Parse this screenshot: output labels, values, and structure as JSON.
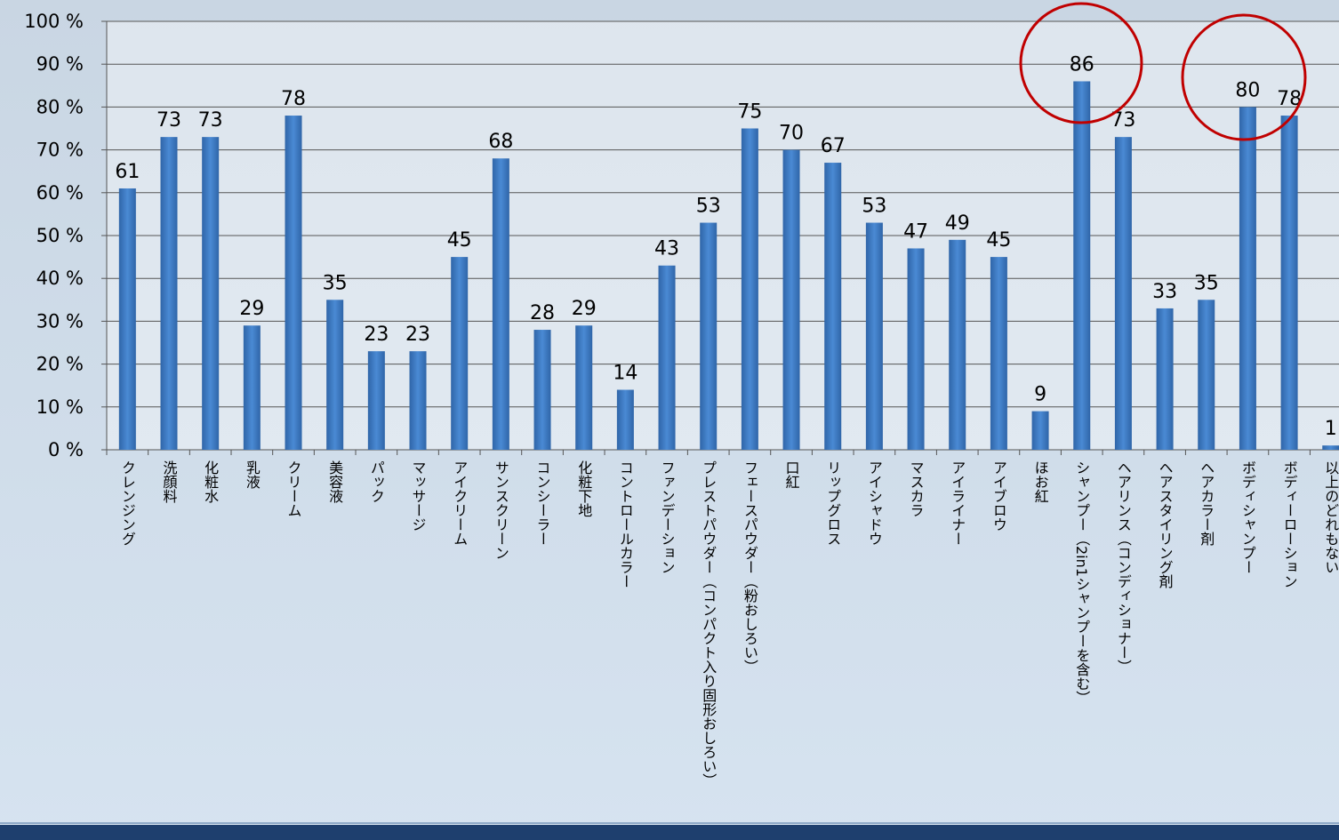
{
  "chart_data": {
    "type": "bar",
    "categories": [
      "クレンジング",
      "洗顔料",
      "化粧水",
      "乳液",
      "クリーム",
      "美容液",
      "パック",
      "マッサージ",
      "アイクリーム",
      "サンスクリーン",
      "コンシーラー",
      "化粧下地",
      "コントロールカラー",
      "ファンデーション",
      "プレストパウダー（コンパクト入り固形おしろい）",
      "フェースパウダー（粉おしろい）",
      "口紅",
      "リップグロス",
      "アイシャドウ",
      "マスカラ",
      "アイライナー",
      "アイブロウ",
      "ほお紅",
      "シャンプー（2in1シャンプーを含む）",
      "ヘアリンス（コンディショナー）",
      "ヘアスタイリング剤",
      "ヘアカラー剤",
      "ボディシャンプー",
      "ボディーローション",
      "以上のどれもない"
    ],
    "values": [
      61,
      73,
      73,
      29,
      78,
      35,
      23,
      23,
      45,
      68,
      28,
      29,
      14,
      43,
      53,
      75,
      70,
      67,
      53,
      47,
      49,
      45,
      9,
      86,
      73,
      33,
      35,
      80,
      78,
      1
    ],
    "color": "#3b7ac4",
    "ylim": [
      0,
      100
    ],
    "yticks": [
      {
        "value": 0,
        "label": "0 %"
      },
      {
        "value": 10,
        "label": "10 %"
      },
      {
        "value": 20,
        "label": "20 %"
      },
      {
        "value": 30,
        "label": "30 %"
      },
      {
        "value": 40,
        "label": "40 %"
      },
      {
        "value": 50,
        "label": "50 %"
      },
      {
        "value": 60,
        "label": "60 %"
      },
      {
        "value": 70,
        "label": "70 %"
      },
      {
        "value": 80,
        "label": "80 %"
      },
      {
        "value": 90,
        "label": "90 %"
      },
      {
        "value": 100,
        "label": "100 %"
      }
    ],
    "grid": true
  }
}
